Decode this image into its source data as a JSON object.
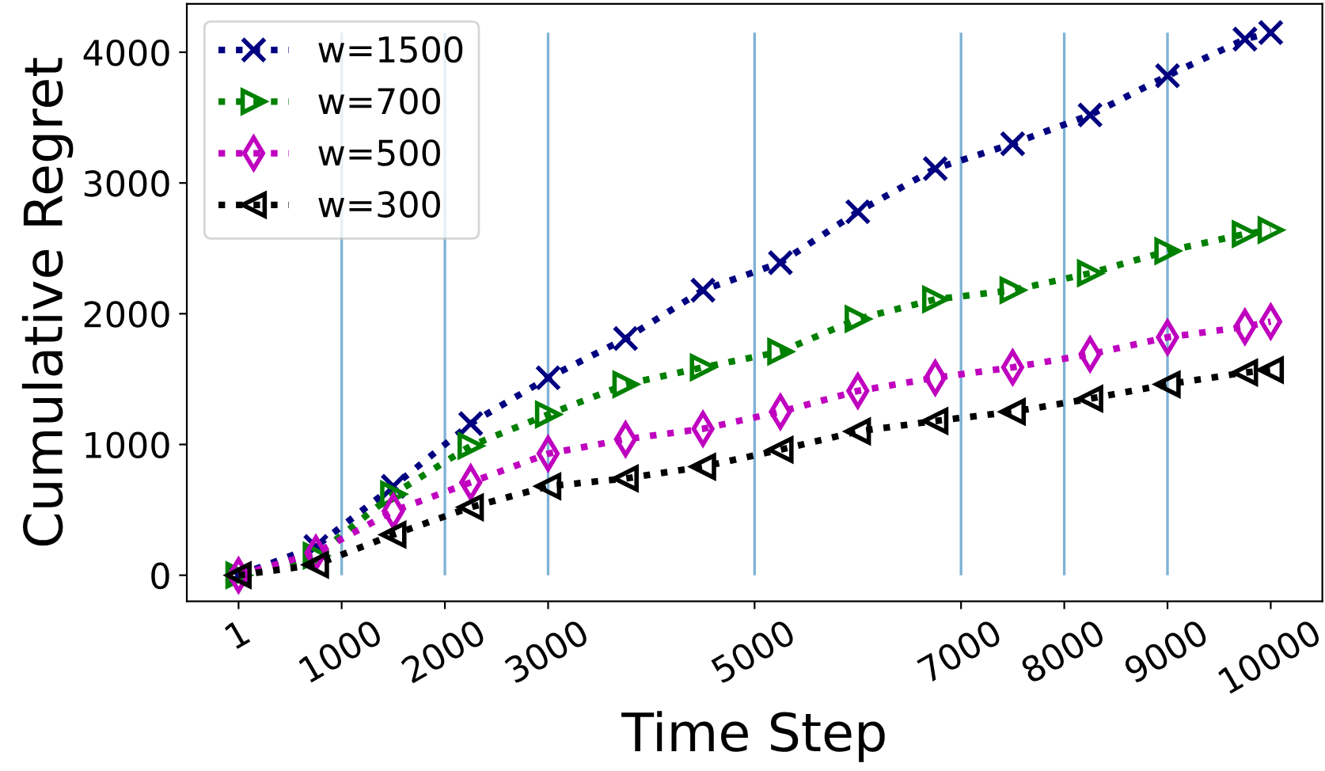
{
  "chart_data": {
    "type": "line",
    "xlabel": "Time Step",
    "ylabel": "Cumulative Regret",
    "x": [
      1,
      750,
      1500,
      2250,
      3000,
      3750,
      4500,
      5250,
      6000,
      6750,
      7500,
      8250,
      9000,
      9750,
      10000
    ],
    "series": [
      {
        "name": "w=1500",
        "color": "#000080",
        "marker": "cross",
        "values": [
          0,
          220,
          680,
          1160,
          1510,
          1810,
          2180,
          2390,
          2780,
          3110,
          3300,
          3520,
          3820,
          4100,
          4150
        ]
      },
      {
        "name": "w=700",
        "color": "#008000",
        "marker": "triangle-right",
        "values": [
          0,
          150,
          620,
          990,
          1230,
          1460,
          1590,
          1710,
          1960,
          2110,
          2180,
          2310,
          2480,
          2610,
          2640
        ]
      },
      {
        "name": "w=500",
        "color": "#bf00bf",
        "marker": "diamond",
        "values": [
          0,
          170,
          490,
          710,
          930,
          1040,
          1120,
          1250,
          1410,
          1510,
          1590,
          1690,
          1820,
          1900,
          1940
        ]
      },
      {
        "name": "w=300",
        "color": "#000000",
        "marker": "triangle-left",
        "values": [
          0,
          80,
          310,
          520,
          680,
          740,
          830,
          960,
          1100,
          1180,
          1250,
          1350,
          1460,
          1550,
          1570
        ]
      }
    ],
    "xlim": [
      -500,
      10500
    ],
    "ylim": [
      -200,
      4370
    ],
    "xticks": [
      1,
      1000,
      2000,
      3000,
      5000,
      7000,
      8000,
      9000,
      10000
    ],
    "yticks": [
      0,
      1000,
      2000,
      3000,
      4000
    ],
    "ref_lines": [
      {
        "axis": "x",
        "value": 1000,
        "color": "#7fb2d5"
      },
      {
        "axis": "x",
        "value": 2000,
        "color": "#7fb2d5"
      },
      {
        "axis": "x",
        "value": 3000,
        "color": "#7fb2d5"
      },
      {
        "axis": "x",
        "value": 5000,
        "color": "#7fb2d5"
      },
      {
        "axis": "x",
        "value": 7000,
        "color": "#7fb2d5"
      },
      {
        "axis": "x",
        "value": 8000,
        "color": "#7fb2d5"
      },
      {
        "axis": "x",
        "value": 9000,
        "color": "#7fb2d5"
      }
    ],
    "line_style": "dotted",
    "legend": "top left",
    "grid": false
  }
}
